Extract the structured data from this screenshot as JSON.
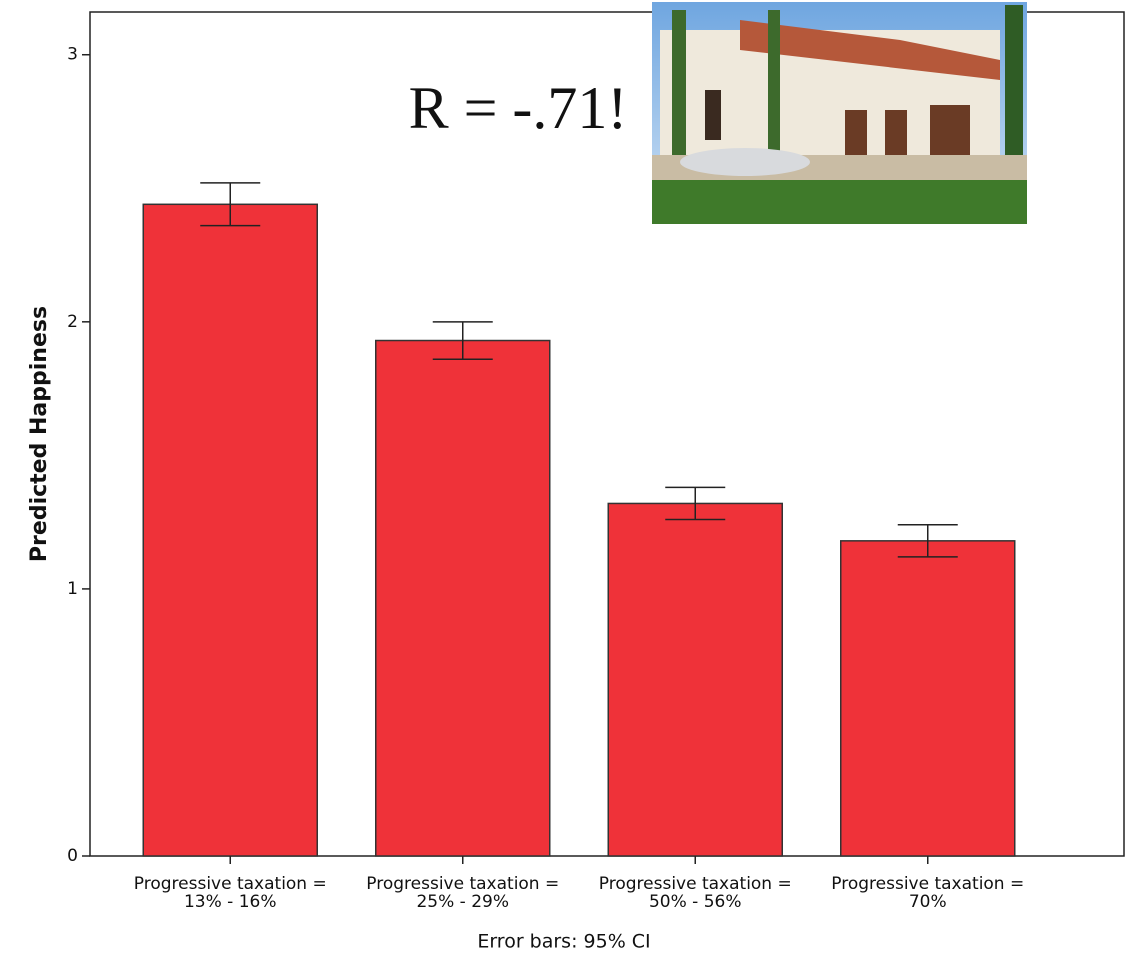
{
  "chart_data": {
    "type": "bar",
    "y_label": "Predicted Happiness",
    "annotation": "R = -.71!",
    "footnote": "Error bars: 95% CI",
    "categories": [
      [
        "Progressive taxation =",
        "13% - 16%"
      ],
      [
        "Progressive taxation =",
        "25% - 29%"
      ],
      [
        "Progressive taxation =",
        "50% - 56%"
      ],
      [
        "Progressive taxation =",
        "70%"
      ]
    ],
    "values": [
      2.44,
      1.93,
      1.32,
      1.18
    ],
    "errors": [
      0.08,
      0.07,
      0.06,
      0.06
    ],
    "color": "#ef3239",
    "ylim": [
      0,
      3.16
    ],
    "yticks": [
      0,
      1,
      2,
      3
    ]
  }
}
